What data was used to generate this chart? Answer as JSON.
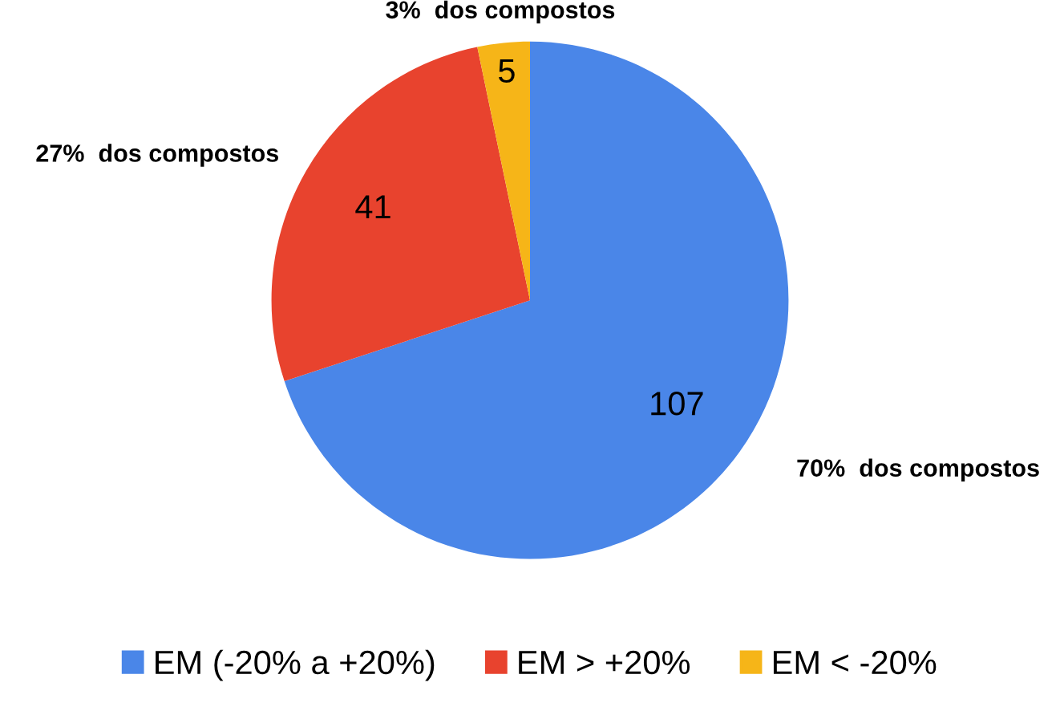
{
  "chart_data": {
    "type": "pie",
    "categories": [
      "EM (-20% a +20%)",
      "EM > +20%",
      "EM < -20%"
    ],
    "values": [
      107,
      41,
      5
    ],
    "colors": [
      "#4a86e8",
      "#e8432e",
      "#f6b518"
    ],
    "data_labels": true,
    "legend": "bottom",
    "annotations": [
      {
        "text": "70%  dos compostos",
        "x": "EM (-20% a +20%)"
      },
      {
        "text": "27%  dos compostos",
        "x": "EM > +20%"
      },
      {
        "text": "3%  dos compostos",
        "x": "EM < -20%"
      }
    ]
  }
}
